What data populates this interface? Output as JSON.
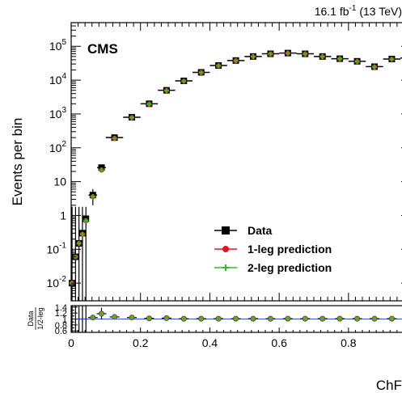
{
  "chart_data": {
    "type": "scatter",
    "panels": [
      "main",
      "ratio"
    ],
    "lumi_label": "16.1 fb",
    "lumi_exp": "-1",
    "lumi_suffix": " (13 TeV)",
    "cms_label": "CMS",
    "ylabel": "Events per bin",
    "xlabel": "ChF",
    "ratio_ylabel_num": "Data",
    "ratio_ylabel_den": "1/2-leg",
    "xlim": [
      0,
      0.98
    ],
    "ylim_log": [
      0.003,
      500000
    ],
    "ratio_ylim": [
      0.55,
      1.45
    ],
    "ratio_reference": 1.0,
    "legend_position": "center-right",
    "x_ticks": [
      "0",
      "0.2",
      "0.4",
      "0.6",
      "0.8"
    ],
    "ratio_ticks": [
      "1.4",
      "1.2",
      "1",
      "0.8",
      "0.6"
    ],
    "y_ticks": [
      {
        "base": "10",
        "exp": "5"
      },
      {
        "base": "10",
        "exp": "4"
      },
      {
        "base": "10",
        "exp": "3"
      },
      {
        "base": "10",
        "exp": "2"
      },
      {
        "base": "10",
        "exp": ""
      },
      {
        "base": "1",
        "exp": ""
      },
      {
        "base": "10",
        "exp": "-1"
      },
      {
        "base": "10",
        "exp": "-2"
      }
    ],
    "x": [
      0.0025,
      0.0125,
      0.0225,
      0.0325,
      0.0425,
      0.0625,
      0.0875,
      0.125,
      0.175,
      0.225,
      0.275,
      0.325,
      0.375,
      0.425,
      0.475,
      0.525,
      0.575,
      0.625,
      0.675,
      0.725,
      0.775,
      0.825,
      0.875,
      0.925,
      0.975
    ],
    "x_halfwidth": [
      0.0025,
      0.0075,
      0.0025,
      0.0075,
      0.0025,
      0.0125,
      0.0125,
      0.025,
      0.025,
      0.025,
      0.025,
      0.025,
      0.025,
      0.025,
      0.025,
      0.025,
      0.025,
      0.025,
      0.025,
      0.025,
      0.025,
      0.025,
      0.025,
      0.025,
      0.025
    ],
    "series": [
      {
        "name": "Data",
        "marker": "square",
        "color": "#000000",
        "values": [
          0.01,
          0.06,
          0.15,
          0.3,
          0.8,
          4,
          26,
          200,
          800,
          2000,
          5000,
          9500,
          17000,
          27000,
          38000,
          50000,
          60000,
          63000,
          60000,
          50000,
          43000,
          36000,
          25000,
          42000,
          45000
        ]
      },
      {
        "name": "1-leg prediction",
        "marker": "circle",
        "color": "#e8141c",
        "values": [
          0.01,
          0.06,
          0.15,
          0.28,
          0.7,
          3.6,
          22,
          190,
          780,
          1950,
          4900,
          9300,
          16800,
          26500,
          37500,
          49500,
          59500,
          62500,
          59500,
          49500,
          42500,
          35500,
          24500,
          41500,
          44500
        ]
      },
      {
        "name": "2-leg prediction",
        "marker": "plus",
        "color": "#2fc11d",
        "values": [
          0.01,
          0.06,
          0.15,
          0.28,
          0.7,
          3.6,
          22,
          190,
          780,
          1950,
          4900,
          9300,
          16800,
          26500,
          37500,
          49500,
          59500,
          62500,
          59500,
          49500,
          42500,
          35500,
          24500,
          41500,
          44500
        ]
      }
    ],
    "ratio_x": [
      0.0625,
      0.0875,
      0.125,
      0.175,
      0.225,
      0.275,
      0.325,
      0.375,
      0.425,
      0.475,
      0.525,
      0.575,
      0.625,
      0.675,
      0.725,
      0.775,
      0.825,
      0.875,
      0.925,
      0.975
    ],
    "ratio_values": [
      1.05,
      1.18,
      1.07,
      1.05,
      1.02,
      1.03,
      1.01,
      1.01,
      1.01,
      1.01,
      1.01,
      1.01,
      1.01,
      1.01,
      1.01,
      1.01,
      1.01,
      1.01,
      1.01,
      1.01
    ],
    "ratio_errors": [
      0.08,
      0.2,
      0.06,
      0.04,
      0.02,
      0.015,
      0.01,
      0.01,
      0.01,
      0.01,
      0.01,
      0.01,
      0.01,
      0.01,
      0.01,
      0.01,
      0.01,
      0.01,
      0.01,
      0.01
    ]
  }
}
